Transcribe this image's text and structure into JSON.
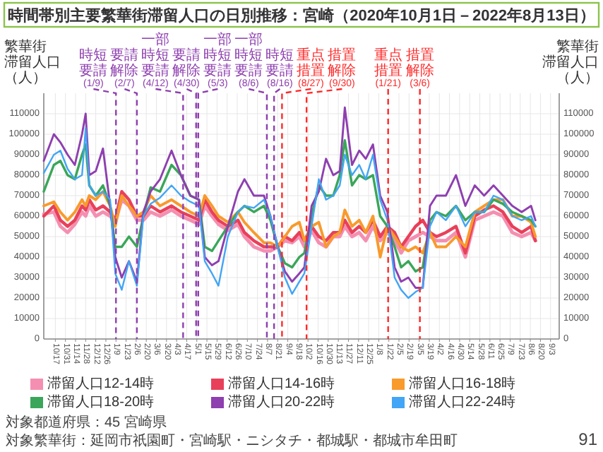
{
  "chart_data": {
    "type": "line",
    "title": "時間帯別主要繁華街滞留人口の日別推移：宮崎（2020年10月1日－2022年8月13日）",
    "ylabel": "繁華街滞留人口（人）",
    "y2label": "繁華街滞留人口（人）",
    "x": [
      "2020-10-01",
      "2020-10-15",
      "2020-10-24",
      "2020-11-03",
      "2020-11-13",
      "2020-11-23",
      "2020-11-28",
      "2020-12-03",
      "2020-12-12",
      "2020-12-22",
      "2021-01-01",
      "2021-01-08",
      "2021-01-17",
      "2021-01-27",
      "2021-02-07",
      "2021-02-16",
      "2021-02-26",
      "2021-03-11",
      "2021-03-27",
      "2021-04-09",
      "2021-04-22",
      "2021-05-04",
      "2021-05-12",
      "2021-05-22",
      "2021-05-31",
      "2021-06-13",
      "2021-06-27",
      "2021-07-06",
      "2021-07-19",
      "2021-08-02",
      "2021-08-11",
      "2021-08-21",
      "2021-08-31",
      "2021-09-10",
      "2021-09-20",
      "2021-09-27",
      "2021-10-07",
      "2021-10-17",
      "2021-10-27",
      "2021-11-06",
      "2021-11-15",
      "2021-11-22",
      "2021-12-02",
      "2021-12-12",
      "2021-12-21",
      "2021-12-31",
      "2022-01-10",
      "2022-01-20",
      "2022-01-30",
      "2022-02-08",
      "2022-02-18",
      "2022-02-28",
      "2022-03-10",
      "2022-03-20",
      "2022-03-29",
      "2022-04-11",
      "2022-04-25",
      "2022-05-08",
      "2022-05-21",
      "2022-06-03",
      "2022-06-16",
      "2022-06-29",
      "2022-07-12",
      "2022-07-25",
      "2022-08-07",
      "2022-08-13"
    ],
    "series": [
      {
        "name": "滞留人口12-14時",
        "color": "#f48fb1",
        "values": [
          61000,
          62000,
          55000,
          52000,
          56000,
          62000,
          60000,
          65000,
          60000,
          62000,
          60000,
          57000,
          68000,
          65000,
          58000,
          58000,
          62000,
          60000,
          63000,
          60000,
          58000,
          56000,
          65000,
          60000,
          56000,
          53000,
          56000,
          50000,
          45000,
          43000,
          43000,
          45000,
          48000,
          47000,
          50000,
          45000,
          53000,
          47000,
          45000,
          50000,
          50000,
          55000,
          50000,
          52000,
          48000,
          55000,
          48000,
          52000,
          48000,
          42000,
          48000,
          50000,
          52000,
          50000,
          48000,
          48000,
          52000,
          40000,
          58000,
          60000,
          62000,
          60000,
          52000,
          50000,
          52000,
          48000
        ]
      },
      {
        "name": "滞留人口14-16時",
        "color": "#e8405a",
        "values": [
          60000,
          65000,
          58000,
          55000,
          58000,
          65000,
          63000,
          68000,
          63000,
          65000,
          62000,
          58000,
          72000,
          68000,
          60000,
          60000,
          65000,
          62000,
          65000,
          62000,
          60000,
          58000,
          68000,
          62000,
          58000,
          55000,
          58000,
          52000,
          48000,
          45000,
          45000,
          45000,
          50000,
          48000,
          52000,
          48000,
          55000,
          50000,
          48000,
          52000,
          52000,
          58000,
          52000,
          55000,
          52000,
          58000,
          50000,
          55000,
          52000,
          45000,
          50000,
          55000,
          58000,
          52000,
          50000,
          52000,
          55000,
          42000,
          60000,
          63000,
          65000,
          62000,
          55000,
          52000,
          55000,
          48000
        ]
      },
      {
        "name": "滞留人口16-18時",
        "color": "#f89a2c",
        "values": [
          65000,
          67000,
          62000,
          58000,
          62000,
          68000,
          65000,
          70000,
          68000,
          72000,
          65000,
          55000,
          70000,
          65000,
          60000,
          62000,
          70000,
          65000,
          68000,
          65000,
          62000,
          60000,
          70000,
          65000,
          60000,
          57000,
          62000,
          57000,
          52000,
          47000,
          47000,
          45000,
          50000,
          55000,
          57000,
          48000,
          55000,
          57000,
          45000,
          50000,
          52000,
          63000,
          55000,
          58000,
          52000,
          60000,
          40000,
          55000,
          50000,
          45000,
          43000,
          45000,
          42000,
          52000,
          45000,
          45000,
          50000,
          45000,
          62000,
          65000,
          68000,
          68000,
          60000,
          60000,
          57000,
          50000
        ]
      },
      {
        "name": "滞留人口18-20時",
        "color": "#3aa65a",
        "values": [
          72000,
          85000,
          87000,
          80000,
          78000,
          90000,
          95000,
          75000,
          70000,
          75000,
          65000,
          45000,
          45000,
          50000,
          45000,
          60000,
          74000,
          72000,
          85000,
          80000,
          70000,
          68000,
          45000,
          43000,
          48000,
          55000,
          62000,
          65000,
          62000,
          65000,
          58000,
          45000,
          37000,
          35000,
          40000,
          42000,
          60000,
          75000,
          70000,
          70000,
          80000,
          97000,
          75000,
          80000,
          78000,
          80000,
          60000,
          55000,
          45000,
          35000,
          38000,
          33000,
          35000,
          58000,
          62000,
          60000,
          65000,
          58000,
          62000,
          62000,
          68000,
          66000,
          62000,
          60000,
          58000,
          55000
        ]
      },
      {
        "name": "滞留人口20-22時",
        "color": "#8e3fb0",
        "values": [
          87000,
          100000,
          96000,
          90000,
          85000,
          100000,
          110000,
          80000,
          82000,
          93000,
          65000,
          40000,
          30000,
          38000,
          28000,
          62000,
          72000,
          78000,
          92000,
          80000,
          70000,
          68000,
          40000,
          36000,
          38000,
          55000,
          72000,
          78000,
          70000,
          70000,
          60000,
          45000,
          33000,
          28000,
          32000,
          35000,
          65000,
          72000,
          88000,
          80000,
          82000,
          113000,
          85000,
          92000,
          88000,
          95000,
          70000,
          62000,
          35000,
          28000,
          30000,
          25000,
          25000,
          65000,
          70000,
          70000,
          80000,
          65000,
          75000,
          70000,
          75000,
          70000,
          65000,
          62000,
          65000,
          58000
        ]
      },
      {
        "name": "滞留人口22-24時",
        "color": "#42a5f5",
        "values": [
          81000,
          90000,
          92000,
          83000,
          78000,
          80000,
          103000,
          75000,
          70000,
          72000,
          68000,
          32000,
          24000,
          38000,
          26000,
          60000,
          66000,
          69000,
          75000,
          70000,
          67000,
          65000,
          38000,
          32000,
          26000,
          50000,
          62000,
          65000,
          64000,
          68000,
          60000,
          45000,
          30000,
          22000,
          28000,
          32000,
          55000,
          78000,
          68000,
          70000,
          75000,
          90000,
          80000,
          85000,
          78000,
          90000,
          68000,
          58000,
          30000,
          24000,
          20000,
          23000,
          25000,
          55000,
          62000,
          58000,
          65000,
          55000,
          62000,
          62000,
          70000,
          68000,
          60000,
          58000,
          60000,
          55000
        ]
      }
    ],
    "xlim": [
      "2020-10-01",
      "2022-09-15"
    ],
    "xticks": [
      {
        "value": "2020-10-17",
        "label": "10/17"
      },
      {
        "value": "2020-10-31",
        "label": "10/31"
      },
      {
        "value": "2020-11-14",
        "label": "11/14"
      },
      {
        "value": "2020-11-28",
        "label": "11/28"
      },
      {
        "value": "2020-12-12",
        "label": "12/12"
      },
      {
        "value": "2020-12-26",
        "label": "12/26"
      },
      {
        "value": "2021-01-09",
        "label": "1/9"
      },
      {
        "value": "2021-01-23",
        "label": "1/23"
      },
      {
        "value": "2021-02-06",
        "label": "2/6"
      },
      {
        "value": "2021-02-20",
        "label": "2/20"
      },
      {
        "value": "2021-03-06",
        "label": "3/6"
      },
      {
        "value": "2021-03-20",
        "label": "3/20"
      },
      {
        "value": "2021-04-03",
        "label": "4/3"
      },
      {
        "value": "2021-04-17",
        "label": "4/17"
      },
      {
        "value": "2021-05-01",
        "label": "5/1"
      },
      {
        "value": "2021-05-15",
        "label": "5/15"
      },
      {
        "value": "2021-05-29",
        "label": "5/29"
      },
      {
        "value": "2021-06-12",
        "label": "6/12"
      },
      {
        "value": "2021-06-26",
        "label": "6/26"
      },
      {
        "value": "2021-07-10",
        "label": "7/10"
      },
      {
        "value": "2021-07-24",
        "label": "7/24"
      },
      {
        "value": "2021-08-07",
        "label": "8/7"
      },
      {
        "value": "2021-08-21",
        "label": "8/21"
      },
      {
        "value": "2021-09-04",
        "label": "9/4"
      },
      {
        "value": "2021-09-18",
        "label": "9/18"
      },
      {
        "value": "2021-10-02",
        "label": "10/2"
      },
      {
        "value": "2021-10-16",
        "label": "10/16"
      },
      {
        "value": "2021-10-30",
        "label": "10/30"
      },
      {
        "value": "2021-11-13",
        "label": "11/13"
      },
      {
        "value": "2021-11-27",
        "label": "11/27"
      },
      {
        "value": "2021-12-11",
        "label": "12/11"
      },
      {
        "value": "2021-12-25",
        "label": "12/25"
      },
      {
        "value": "2022-01-08",
        "label": "1/8"
      },
      {
        "value": "2022-01-22",
        "label": "1/22"
      },
      {
        "value": "2022-02-05",
        "label": "2/5"
      },
      {
        "value": "2022-02-19",
        "label": "2/19"
      },
      {
        "value": "2022-03-05",
        "label": "3/5"
      },
      {
        "value": "2022-03-19",
        "label": "3/19"
      },
      {
        "value": "2022-04-02",
        "label": "4/2"
      },
      {
        "value": "2022-04-16",
        "label": "4/16"
      },
      {
        "value": "2022-04-30",
        "label": "4/30"
      },
      {
        "value": "2022-05-14",
        "label": "5/14"
      },
      {
        "value": "2022-05-28",
        "label": "5/28"
      },
      {
        "value": "2022-06-11",
        "label": "6/11"
      },
      {
        "value": "2022-06-25",
        "label": "6/25"
      },
      {
        "value": "2022-07-09",
        "label": "7/9"
      },
      {
        "value": "2022-07-23",
        "label": "7/23"
      },
      {
        "value": "2022-08-06",
        "label": "8/6"
      },
      {
        "value": "2022-08-20",
        "label": "8/20"
      },
      {
        "value": "2022-09-03",
        "label": "9/3"
      }
    ],
    "ylim": [
      0,
      120000
    ],
    "yticks": [
      0,
      10000,
      20000,
      30000,
      40000,
      50000,
      60000,
      70000,
      80000,
      90000,
      100000,
      110000
    ],
    "y2lim": [
      0,
      120000
    ],
    "y2ticks": [
      0,
      10000,
      20000,
      30000,
      40000,
      50000,
      60000,
      70000,
      80000,
      90000,
      100000,
      110000
    ],
    "ref_lines": [
      {
        "axis": "x",
        "value": "2021-01-09",
        "label": "時短要請(1/9)",
        "color": "#8e3fb0",
        "line_style": "dashed"
      },
      {
        "axis": "x",
        "value": "2021-02-07",
        "label": "要請解除(2/7)",
        "color": "#8e3fb0",
        "line_style": "dashed"
      },
      {
        "axis": "x",
        "value": "2021-04-12",
        "label": "一部時短要請(4/12)",
        "color": "#8e3fb0",
        "line_style": "dashed"
      },
      {
        "axis": "x",
        "value": "2021-04-30",
        "label": "要請解除(4/30)",
        "color": "#8e3fb0",
        "line_style": "dashed"
      },
      {
        "axis": "x",
        "value": "2021-05-03",
        "label": "一部時短要請(5/3)",
        "color": "#8e3fb0",
        "line_style": "dashed"
      },
      {
        "axis": "x",
        "value": "2021-08-06",
        "label": "一部時短要請(8/6)",
        "color": "#8e3fb0",
        "line_style": "dashed"
      },
      {
        "axis": "x",
        "value": "2021-08-16",
        "label": "時短要請(8/16)",
        "color": "#8e3fb0",
        "line_style": "dashed"
      },
      {
        "axis": "x",
        "value": "2021-08-27",
        "label": "重点措置(8/27)",
        "color": "#ff2a2a",
        "line_style": "dashed"
      },
      {
        "axis": "x",
        "value": "2021-09-30",
        "label": "措置解除(9/30)",
        "color": "#ff2a2a",
        "line_style": "dashed"
      },
      {
        "axis": "x",
        "value": "2022-01-21",
        "label": "重点措置(1/21)",
        "color": "#ff2a2a",
        "line_style": "dashed"
      },
      {
        "axis": "x",
        "value": "2022-03-06",
        "label": "措置解除(3/6)",
        "color": "#ff2a2a",
        "line_style": "dashed"
      }
    ],
    "annotations": [
      "対象都道府県：45 宮崎県",
      "対象繁華街：延岡市祇園町・宮崎駅・ニシタチ・都城駅・都城市牟田町",
      "91"
    ],
    "grid": true,
    "legend": "bottom",
    "marker": "none"
  }
}
